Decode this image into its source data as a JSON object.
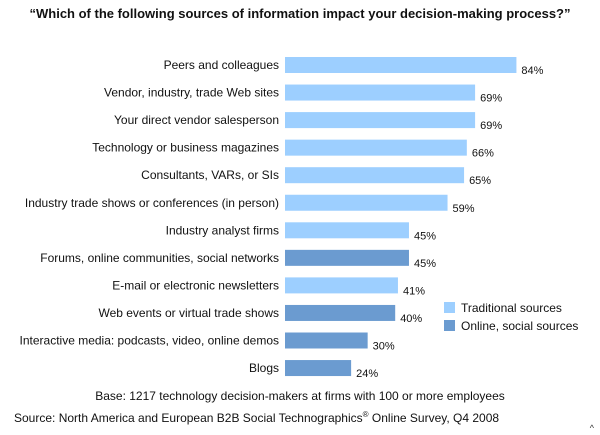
{
  "chart_data": {
    "type": "bar",
    "orientation": "horizontal",
    "title": "“Which of the following sources of information impact your decision-making process?”",
    "categories": [
      "Peers and colleagues",
      "Vendor, industry, trade Web sites",
      "Your direct vendor salesperson",
      "Technology or business magazines",
      "Consultants, VARs, or SIs",
      "Industry trade shows or conferences (in person)",
      "Industry analyst firms",
      "Forums, online communities, social networks",
      "E-mail or electronic newsletters",
      "Web events or virtual trade shows",
      "Interactive media: podcasts, video, online demos",
      "Blogs"
    ],
    "values": [
      84,
      69,
      69,
      66,
      65,
      59,
      45,
      45,
      41,
      40,
      30,
      24
    ],
    "value_labels": [
      "84%",
      "69%",
      "69%",
      "66%",
      "65%",
      "59%",
      "45%",
      "45%",
      "41%",
      "40%",
      "30%",
      "24%"
    ],
    "groups": [
      "traditional",
      "traditional",
      "traditional",
      "traditional",
      "traditional",
      "traditional",
      "traditional",
      "online",
      "traditional",
      "online",
      "online",
      "online"
    ],
    "legend": [
      {
        "key": "traditional",
        "label": "Traditional sources",
        "color": "#9dcfff"
      },
      {
        "key": "online",
        "label": "Online, social sources",
        "color": "#6b9bd0"
      }
    ],
    "legend_position": "bottom-right",
    "xlim": [
      0,
      100
    ],
    "grid": false
  },
  "footer": {
    "base": "Base: 1217 technology decision-makers at firms with 100 or more employees",
    "source_prefix": "Source: North America and European B2B Social Technographics",
    "source_reg": "®",
    "source_suffix": " Online Survey, Q4 2008"
  },
  "corner_mark": "^"
}
